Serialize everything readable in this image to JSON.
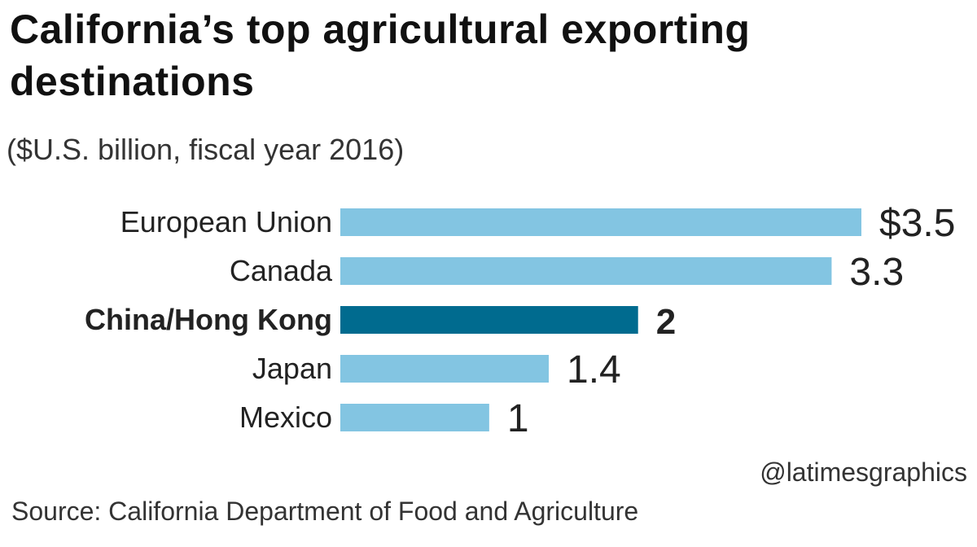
{
  "header": {
    "title": "California’s top agricultural exporting destinations",
    "subtitle": "($U.S. billion, fiscal year 2016)"
  },
  "footer": {
    "credit": "@latimesgraphics",
    "source": "Source: California Department of Food and Agriculture"
  },
  "colors": {
    "bar": "#83c5e2",
    "highlight": "#006b8f",
    "text": "#222222"
  },
  "chart_data": {
    "type": "bar",
    "orientation": "horizontal",
    "title": "California’s top agricultural exporting destinations",
    "subtitle": "($U.S. billion, fiscal year 2016)",
    "categories": [
      "European Union",
      "Canada",
      "China/Hong Kong",
      "Japan",
      "Mexico"
    ],
    "values": [
      3.5,
      3.3,
      2,
      1.4,
      1
    ],
    "value_labels": [
      "$3.5",
      "3.3",
      "2",
      "1.4",
      "1"
    ],
    "highlighted": "China/Hong Kong",
    "xlim": [
      0,
      3.5
    ],
    "grid": false,
    "legend": "none"
  }
}
